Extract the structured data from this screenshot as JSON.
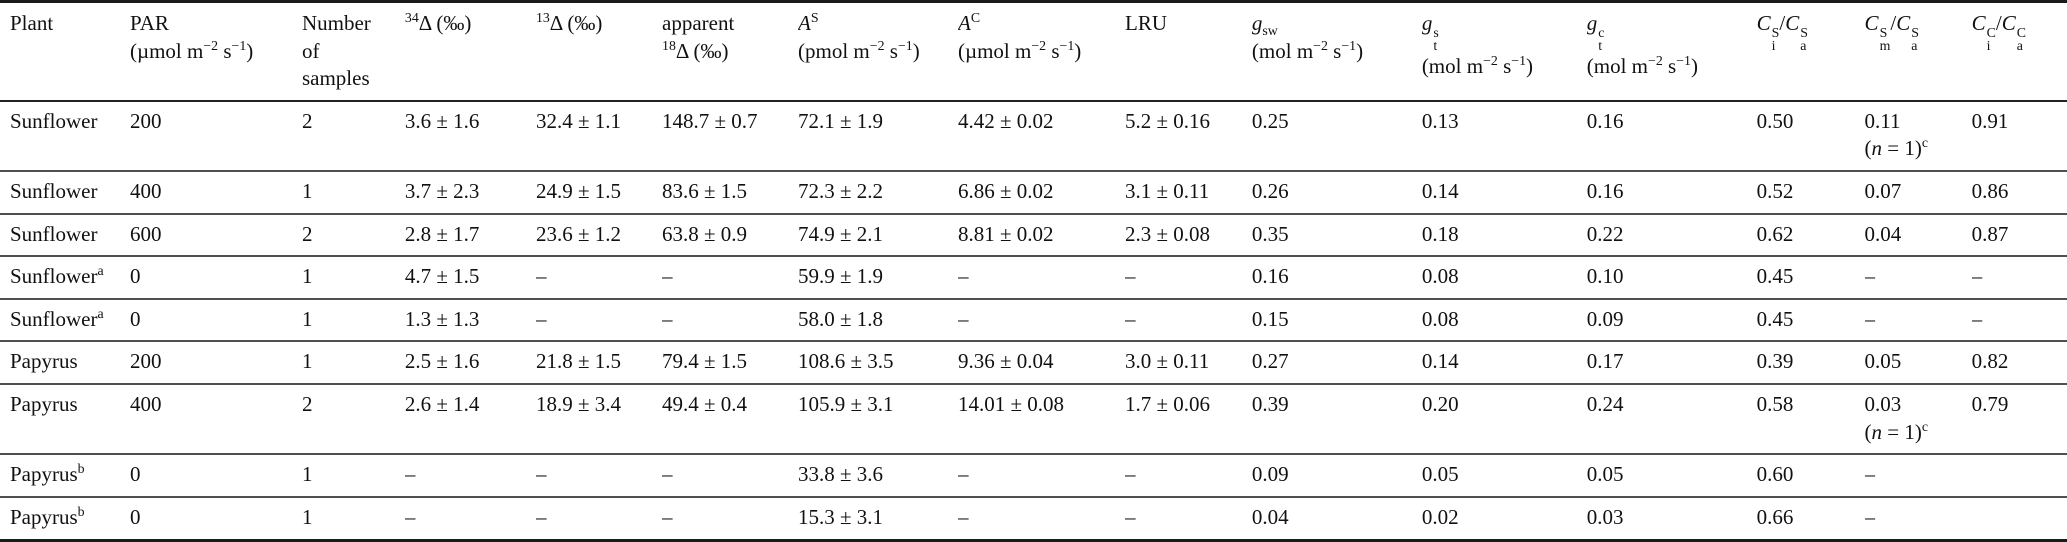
{
  "page": {
    "background_color": "#ffffff",
    "text_color": "#111111",
    "rule_color_heavy": "#1a1a1a",
    "rule_color_light": "#4f4f4f"
  },
  "table": {
    "columns": [
      {
        "key": "plant",
        "label": [
          [
            {
              "t": "Plant"
            }
          ]
        ]
      },
      {
        "key": "par",
        "label": [
          [
            {
              "t": "PAR"
            }
          ],
          [
            {
              "t": "(µmol m"
            },
            {
              "sup": "−2"
            },
            {
              "t": " s"
            },
            {
              "sup": "−1"
            },
            {
              "t": ")"
            }
          ]
        ]
      },
      {
        "key": "samples",
        "label": [
          [
            {
              "t": "Number"
            }
          ],
          [
            {
              "t": "of"
            }
          ],
          [
            {
              "t": "samples"
            }
          ]
        ]
      },
      {
        "key": "d34",
        "label": [
          [
            {
              "sup": "34"
            },
            {
              "t": "Δ (‰)"
            }
          ]
        ]
      },
      {
        "key": "d13",
        "label": [
          [
            {
              "sup": "13"
            },
            {
              "t": "Δ (‰)"
            }
          ]
        ]
      },
      {
        "key": "d18",
        "label": [
          [
            {
              "t": "apparent"
            }
          ],
          [
            {
              "sup": "18"
            },
            {
              "t": "Δ (‰)"
            }
          ]
        ]
      },
      {
        "key": "as",
        "label": [
          [
            {
              "i": "A"
            },
            {
              "sup": "S"
            }
          ],
          [
            {
              "t": "(pmol m"
            },
            {
              "sup": "−2"
            },
            {
              "t": " s"
            },
            {
              "sup": "−1"
            },
            {
              "t": ")"
            }
          ]
        ]
      },
      {
        "key": "ac",
        "label": [
          [
            {
              "i": "A"
            },
            {
              "sup": "C"
            }
          ],
          [
            {
              "t": "(µmol m"
            },
            {
              "sup": "−2"
            },
            {
              "t": " s"
            },
            {
              "sup": "−1"
            },
            {
              "t": ")"
            }
          ]
        ]
      },
      {
        "key": "lru",
        "label": [
          [
            {
              "t": "LRU"
            }
          ]
        ]
      },
      {
        "key": "gsw",
        "label": [
          [
            {
              "i": "g"
            },
            {
              "sub": "sw"
            }
          ],
          [
            {
              "t": "(mol m"
            },
            {
              "sup": "−2"
            },
            {
              "t": " s"
            },
            {
              "sup": "−1"
            },
            {
              "t": ")"
            }
          ]
        ]
      },
      {
        "key": "gts",
        "label": [
          [
            {
              "i": "g"
            },
            {
              "stack": {
                "sup": "s",
                "sub": "t"
              }
            }
          ],
          [
            {
              "t": "(mol m"
            },
            {
              "sup": "−2"
            },
            {
              "t": " s"
            },
            {
              "sup": "−1"
            },
            {
              "t": ")"
            }
          ]
        ]
      },
      {
        "key": "gtc",
        "label": [
          [
            {
              "i": "g"
            },
            {
              "stack": {
                "sup": "c",
                "sub": "t"
              }
            }
          ],
          [
            {
              "t": "(mol m"
            },
            {
              "sup": "−2"
            },
            {
              "t": " s"
            },
            {
              "sup": "−1"
            },
            {
              "t": ")"
            }
          ]
        ]
      },
      {
        "key": "cis",
        "label": [
          [
            {
              "i": "C"
            },
            {
              "stack": {
                "sup": "S",
                "sub": "i"
              }
            },
            {
              "t": "/"
            },
            {
              "i": "C"
            },
            {
              "stack": {
                "sup": "S",
                "sub": "a"
              }
            }
          ]
        ]
      },
      {
        "key": "cms",
        "label": [
          [
            {
              "i": "C"
            },
            {
              "stack": {
                "sup": "S",
                "sub": "m"
              }
            },
            {
              "t": "/"
            },
            {
              "i": "C"
            },
            {
              "stack": {
                "sup": "S",
                "sub": "a"
              }
            }
          ]
        ]
      },
      {
        "key": "cic",
        "label": [
          [
            {
              "i": "C"
            },
            {
              "stack": {
                "sup": "C",
                "sub": "i"
              }
            },
            {
              "t": "/"
            },
            {
              "i": "C"
            },
            {
              "stack": {
                "sup": "C",
                "sub": "a"
              }
            }
          ]
        ]
      }
    ],
    "rows": [
      {
        "cells": [
          "Sunflower",
          "200",
          "2",
          "3.6 ± 1.6",
          "32.4 ± 1.1",
          "148.7 ± 0.7",
          "72.1 ± 1.9",
          "4.42 ± 0.02",
          "5.2 ± 0.16",
          "0.25",
          "0.13",
          "0.16",
          "0.50",
          [
            [
              {
                "t": "0.11"
              }
            ],
            [
              {
                "t": "("
              },
              {
                "i": "n"
              },
              {
                "t": " = 1)"
              },
              {
                "sup": "c"
              }
            ]
          ],
          "0.91"
        ]
      },
      {
        "cells": [
          "Sunflower",
          "400",
          "1",
          "3.7 ± 2.3",
          "24.9 ± 1.5",
          "83.6 ± 1.5",
          "72.3 ± 2.2",
          "6.86 ± 0.02",
          "3.1 ± 0.11",
          "0.26",
          "0.14",
          "0.16",
          "0.52",
          "0.07",
          "0.86"
        ]
      },
      {
        "cells": [
          "Sunflower",
          "600",
          "2",
          "2.8 ± 1.7",
          "23.6 ± 1.2",
          "63.8 ± 0.9",
          "74.9 ± 2.1",
          "8.81 ± 0.02",
          "2.3 ± 0.08",
          "0.35",
          "0.18",
          "0.22",
          "0.62",
          "0.04",
          "0.87"
        ]
      },
      {
        "cells": [
          [
            [
              {
                "t": "Sunflower"
              },
              {
                "sup": "a"
              }
            ]
          ],
          "0",
          "1",
          "4.7 ± 1.5",
          "–",
          "–",
          "59.9 ± 1.9",
          "–",
          "–",
          "0.16",
          "0.08",
          "0.10",
          "0.45",
          "–",
          "–"
        ]
      },
      {
        "cells": [
          [
            [
              {
                "t": "Sunflower"
              },
              {
                "sup": "a"
              }
            ]
          ],
          "0",
          "1",
          "1.3 ± 1.3",
          "–",
          "–",
          "58.0 ± 1.8",
          "–",
          "–",
          "0.15",
          "0.08",
          "0.09",
          "0.45",
          "–",
          "–"
        ]
      },
      {
        "cells": [
          "Papyrus",
          "200",
          "1",
          "2.5 ± 1.6",
          "21.8 ± 1.5",
          "79.4 ± 1.5",
          "108.6 ± 3.5",
          "9.36 ± 0.04",
          "3.0 ± 0.11",
          "0.27",
          "0.14",
          "0.17",
          "0.39",
          "0.05",
          "0.82"
        ]
      },
      {
        "cells": [
          "Papyrus",
          "400",
          "2",
          "2.6 ± 1.4",
          "18.9 ± 3.4",
          "49.4 ± 0.4",
          "105.9 ± 3.1",
          "14.01 ± 0.08",
          "1.7 ± 0.06",
          "0.39",
          "0.20",
          "0.24",
          "0.58",
          [
            [
              {
                "t": "0.03"
              }
            ],
            [
              {
                "t": "("
              },
              {
                "i": "n"
              },
              {
                "t": " = 1)"
              },
              {
                "sup": "c"
              }
            ]
          ],
          "0.79"
        ]
      },
      {
        "cells": [
          [
            [
              {
                "t": "Papyrus"
              },
              {
                "sup": "b"
              }
            ]
          ],
          "0",
          "1",
          "–",
          "–",
          "–",
          "33.8 ± 3.6",
          "–",
          "–",
          "0.09",
          "0.05",
          "0.05",
          "0.60",
          "–",
          ""
        ]
      },
      {
        "cells": [
          [
            [
              {
                "t": "Papyrus"
              },
              {
                "sup": "b"
              }
            ]
          ],
          "0",
          "1",
          "–",
          "–",
          "–",
          "15.3 ± 3.1",
          "–",
          "–",
          "0.04",
          "0.02",
          "0.03",
          "0.66",
          "–",
          ""
        ]
      }
    ]
  }
}
